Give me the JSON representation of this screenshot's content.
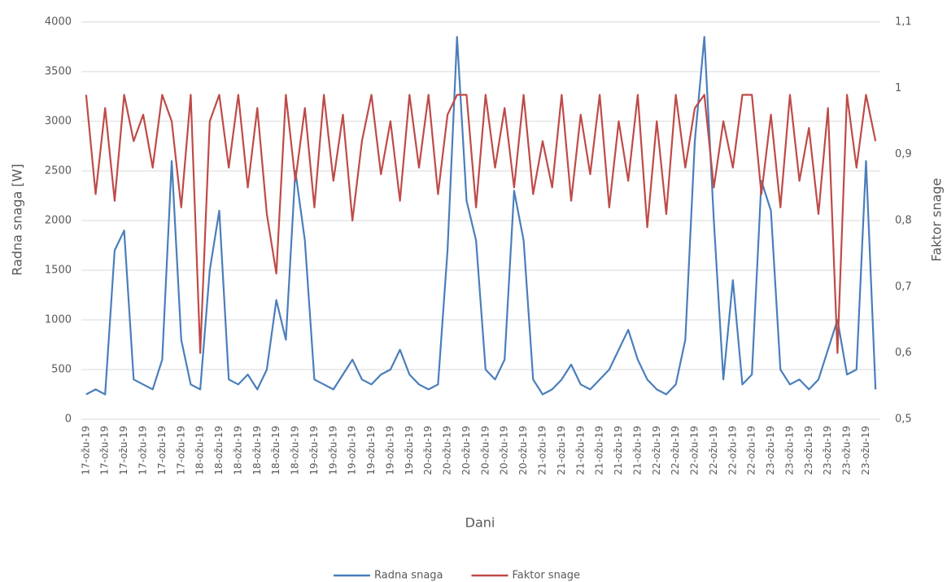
{
  "chart_data": {
    "type": "line",
    "x_label": "Dani",
    "y_label": "Radna snaga [W]",
    "y2_label": "Faktor snage",
    "categories": [
      "17-ožu-19",
      null,
      "17-ožu-19",
      null,
      "17-ožu-19",
      null,
      "17-ožu-19",
      null,
      "17-ožu-19",
      null,
      "17-ožu-19",
      null,
      "18-ožu-19",
      null,
      "18-ožu-19",
      null,
      "18-ožu-19",
      null,
      "18-ožu-19",
      null,
      "18-ožu-19",
      null,
      "18-ožu-19",
      null,
      "19-ožu-19",
      null,
      "19-ožu-19",
      null,
      "19-ožu-19",
      null,
      "19-ožu-19",
      null,
      "19-ožu-19",
      null,
      "19-ožu-19",
      null,
      "20-ožu-19",
      null,
      "20-ožu-19",
      null,
      "20-ožu-19",
      null,
      "20-ožu-19",
      null,
      "20-ožu-19",
      null,
      "20-ožu-19",
      null,
      "21-ožu-19",
      null,
      "21-ožu-19",
      null,
      "21-ožu-19",
      null,
      "21-ožu-19",
      null,
      "21-ožu-19",
      null,
      "21-ožu-19",
      null,
      "22-ožu-19",
      null,
      "22-ožu-19",
      null,
      "22-ožu-19",
      null,
      "22-ožu-19",
      null,
      "22-ožu-19",
      null,
      "22-ožu-19",
      null,
      "23-ožu-19",
      null,
      "23-ožu-19",
      null,
      "23-ožu-19",
      null,
      "23-ožu-19",
      null,
      "23-ožu-19",
      null,
      "23-ožu-19",
      null
    ],
    "series": [
      {
        "name": "Radna snaga",
        "color": "#4a7ebb",
        "axis": "y",
        "values": [
          250,
          300,
          250,
          1700,
          1900,
          400,
          350,
          300,
          600,
          2600,
          800,
          350,
          300,
          1500,
          2100,
          400,
          350,
          450,
          300,
          500,
          1200,
          800,
          2500,
          1800,
          400,
          350,
          300,
          450,
          600,
          400,
          350,
          450,
          500,
          700,
          450,
          350,
          300,
          350,
          1700,
          3850,
          2200,
          1800,
          500,
          400,
          600,
          2300,
          1800,
          400,
          250,
          300,
          400,
          550,
          350,
          300,
          400,
          500,
          700,
          900,
          600,
          400,
          300,
          250,
          350,
          800,
          2800,
          3850,
          2000,
          400,
          1400,
          350,
          450,
          2400,
          2100,
          500,
          350,
          400,
          300,
          400,
          700,
          1000,
          450,
          500,
          2600,
          300
        ]
      },
      {
        "name": "Faktor snage",
        "color": "#be4b48",
        "axis": "y2",
        "values": [
          0.99,
          0.84,
          0.97,
          0.83,
          0.99,
          0.92,
          0.96,
          0.88,
          0.99,
          0.95,
          0.82,
          0.99,
          0.6,
          0.95,
          0.99,
          0.88,
          0.99,
          0.85,
          0.97,
          0.81,
          0.72,
          0.99,
          0.86,
          0.97,
          0.82,
          0.99,
          0.86,
          0.96,
          0.8,
          0.92,
          0.99,
          0.87,
          0.95,
          0.83,
          0.99,
          0.88,
          0.99,
          0.84,
          0.96,
          0.99,
          0.99,
          0.82,
          0.99,
          0.88,
          0.97,
          0.85,
          0.99,
          0.84,
          0.92,
          0.85,
          0.99,
          0.83,
          0.96,
          0.87,
          0.99,
          0.82,
          0.95,
          0.86,
          0.99,
          0.79,
          0.95,
          0.81,
          0.99,
          0.88,
          0.97,
          0.99,
          0.85,
          0.95,
          0.88,
          0.99,
          0.99,
          0.84,
          0.96,
          0.82,
          0.99,
          0.86,
          0.94,
          0.81,
          0.97,
          0.6,
          0.99,
          0.88,
          0.99,
          0.92
        ]
      }
    ],
    "ylim": [
      0,
      4000
    ],
    "yticks": [
      0,
      500,
      1000,
      1500,
      2000,
      2500,
      3000,
      3500,
      4000
    ],
    "y2lim": [
      0.5,
      1.1
    ],
    "y2ticks": [
      {
        "value": 0.5,
        "label": "0,5"
      },
      {
        "value": 0.6,
        "label": "0,6"
      },
      {
        "value": 0.7,
        "label": "0,7"
      },
      {
        "value": 0.8,
        "label": "0,8"
      },
      {
        "value": 0.9,
        "label": "0,9"
      },
      {
        "value": 1,
        "label": "1"
      },
      {
        "value": 1.1,
        "label": "1,1"
      }
    ],
    "grid": true,
    "legend": "bottom"
  }
}
